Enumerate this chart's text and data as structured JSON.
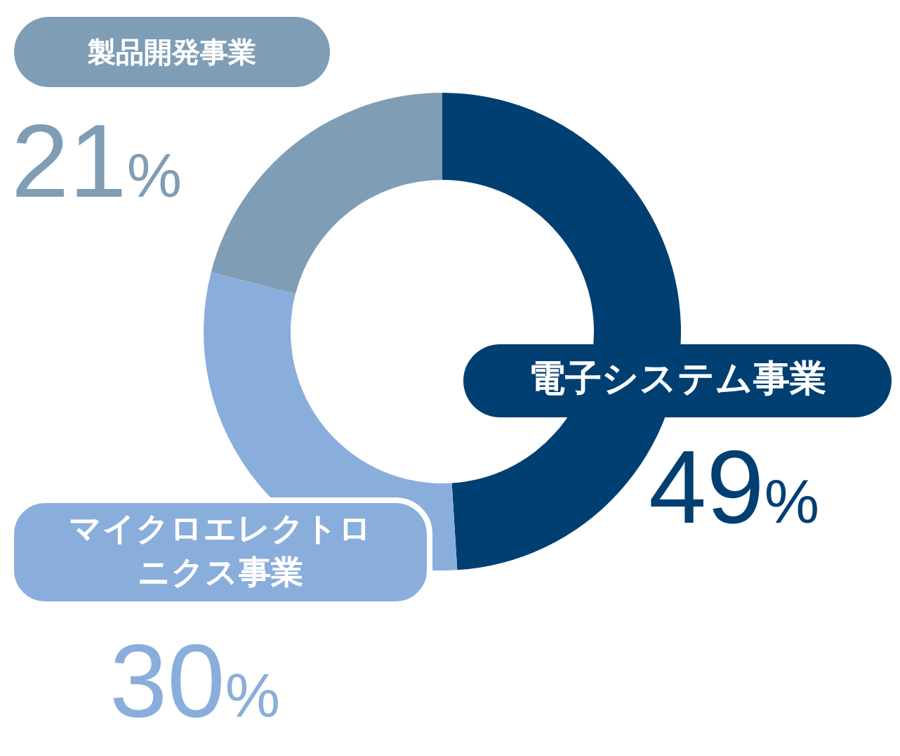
{
  "chart_data": {
    "type": "donut",
    "categories": [
      "電子システム事業",
      "マイクロエレクトロニクス事業",
      "製品開発事業"
    ],
    "values": [
      49,
      30,
      21
    ],
    "colors": [
      "#003f72",
      "#8aaedb",
      "#7f9db5"
    ],
    "value_labels": [
      "49%",
      "30%",
      "21%"
    ]
  }
}
